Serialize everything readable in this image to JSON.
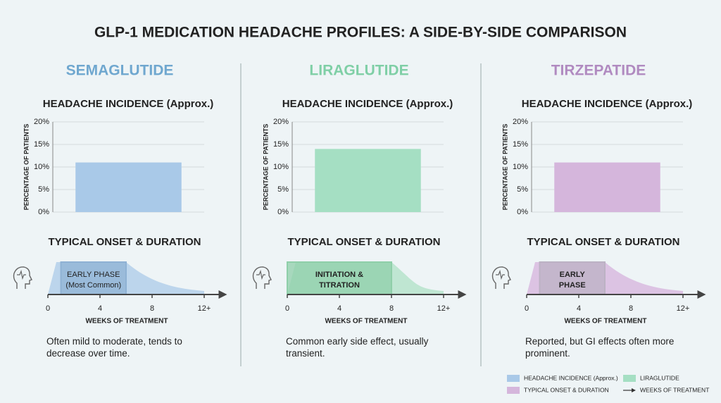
{
  "title": "GLP-1 MEDICATION HEADACHE PROFILES: A SIDE-BY-SIDE COMPARISON",
  "panels": [
    {
      "name": "SEMAGLUTIDE",
      "color": "#6fa7cf",
      "note": "Often mild to moderate, tends to decrease over time."
    },
    {
      "name": "LIRAGLUTIDE",
      "color": "#7fcfa6",
      "note": "Common early side effect, usually transient."
    },
    {
      "name": "TIRZEPATIDE",
      "color": "#b08ac0",
      "note": "Reported, but GI effects often more prominent."
    }
  ],
  "chart_data": [
    {
      "type": "bar",
      "title": "HEADACHE INCIDENCE (Approx.)",
      "ylabel": "PERCENTAGE OF PATIENTS",
      "categories": [
        null
      ],
      "values": [
        11
      ],
      "color": "#a9c9e8",
      "ylim": [
        0,
        20
      ],
      "yticks": [
        {
          "value": 0,
          "label": "0%"
        },
        {
          "value": 5,
          "label": "5%"
        },
        {
          "value": 10,
          "label": "10%"
        },
        {
          "value": 15,
          "label": "15%"
        },
        {
          "value": 20,
          "label": "20%"
        }
      ],
      "grid": true
    },
    {
      "type": "bar",
      "title": "HEADACHE INCIDENCE (Approx.)",
      "ylabel": "PERCENTAGE OF PATIENTS",
      "categories": [
        null
      ],
      "values": [
        14
      ],
      "color": "#a5dfc3",
      "ylim": [
        0,
        20
      ],
      "yticks": [
        {
          "value": 0,
          "label": "0%"
        },
        {
          "value": 5,
          "label": "5%"
        },
        {
          "value": 10,
          "label": "10%"
        },
        {
          "value": 15,
          "label": "15%"
        },
        {
          "value": 20,
          "label": "20%"
        }
      ],
      "grid": true
    },
    {
      "type": "bar",
      "title": "HEADACHE INCIDENCE (Approx.)",
      "ylabel": "PERCENTAGE OF PATIENTS",
      "categories": [
        null
      ],
      "values": [
        11
      ],
      "color": "#d5b6dc",
      "ylim": [
        0,
        20
      ],
      "yticks": [
        {
          "value": 0,
          "label": "0%"
        },
        {
          "value": 5,
          "label": "5%"
        },
        {
          "value": 10,
          "label": "10%"
        },
        {
          "value": 15,
          "label": "15%"
        },
        {
          "value": 20,
          "label": "20%"
        }
      ],
      "grid": true
    }
  ],
  "timelines": [
    {
      "type": "timeline",
      "title": "TYPICAL ONSET & DURATION",
      "xlabel": "WEEKS OF TREATMENT",
      "xlim": [
        0,
        13
      ],
      "xticks": [
        0,
        4,
        8,
        {
          "value": 12,
          "label": "12+"
        }
      ],
      "color": "#bcd5ec",
      "phase": {
        "start": 1,
        "end": 6,
        "label": "EARLY PHASE",
        "sublabel": "(Most Common)",
        "color": "#8fb2d4"
      }
    },
    {
      "type": "timeline",
      "title": "TYPICAL ONSET & DURATION",
      "xlabel": "WEEKS OF TREATMENT",
      "xlim": [
        0,
        13
      ],
      "xticks": [
        0,
        4,
        8,
        {
          "value": 12,
          "label": "12+"
        }
      ],
      "color": "#bfe6d2",
      "phase": {
        "start": 0,
        "end": 8,
        "label": "INITIATION &",
        "sublabel": "TITRATION",
        "color": "#8fcfa9"
      }
    },
    {
      "type": "timeline",
      "title": "TYPICAL ONSET & DURATION",
      "xlabel": "WEEKS OF TREATMENT",
      "xlim": [
        0,
        13
      ],
      "xticks": [
        0,
        4,
        8,
        {
          "value": 12,
          "label": "12+"
        }
      ],
      "color": "#dcc3e3",
      "phase": {
        "start": 1,
        "end": 6,
        "label": "EARLY",
        "sublabel": "PHASE",
        "color": "#bcb2c4"
      }
    }
  ],
  "legend": [
    {
      "label": "HEADACHE INCIDENCE (Approx.)",
      "color": "#a9c9e8"
    },
    {
      "label": "LIRAGLUTIDE",
      "color": "#a5dfc3"
    },
    {
      "label": "TYPICAL ONSET & DURATION",
      "color": "#d5b6dc"
    },
    {
      "label": "WEEKS OF TREATMENT",
      "marker": "arrow"
    }
  ]
}
